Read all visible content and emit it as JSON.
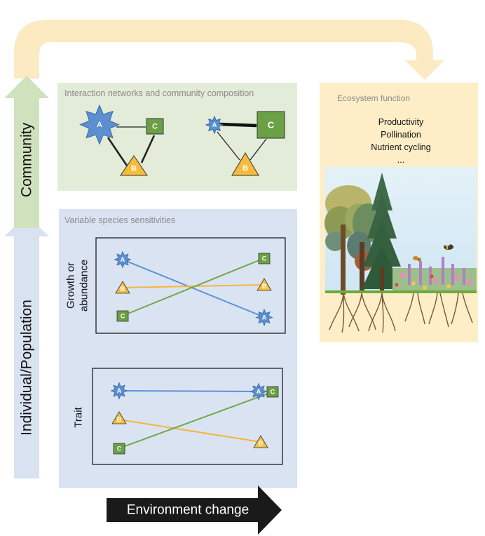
{
  "axis_labels": {
    "vertical_lower": "Individual/Population",
    "vertical_upper": "Community",
    "horizontal": "Environment change"
  },
  "panels": {
    "networks": {
      "title": "Interaction networks and community composition"
    },
    "sensitivities": {
      "title": "Variable species sensitivities"
    },
    "ecosystem": {
      "title": "Ecosystem function",
      "functions": [
        "Productivity",
        "Pollination",
        "Nutrient cycling",
        "..."
      ]
    }
  },
  "plots": {
    "growth": {
      "ylabel_line1": "Growth or",
      "ylabel_line2": "abundance"
    },
    "trait": {
      "ylabel": "Trait"
    }
  },
  "species": {
    "A": "A",
    "B": "B",
    "C": "C"
  },
  "colors": {
    "species_a": "#5b8fcf",
    "species_b": "#f6bd3c",
    "species_c": "#6ca044",
    "line_a": "#5b93d3",
    "line_b": "#f5b63a",
    "line_c": "#70a84a",
    "network_panel": "#e3ecd9",
    "sensitivity_panel": "#dae3f2",
    "ecosystem_panel": "#fdeec8",
    "feedback_arrow": "#fbeac2",
    "community_arrow": "#cfe2bd",
    "population_arrow": "#d9e2f0",
    "environment_arrow": "#1a1a1a"
  }
}
